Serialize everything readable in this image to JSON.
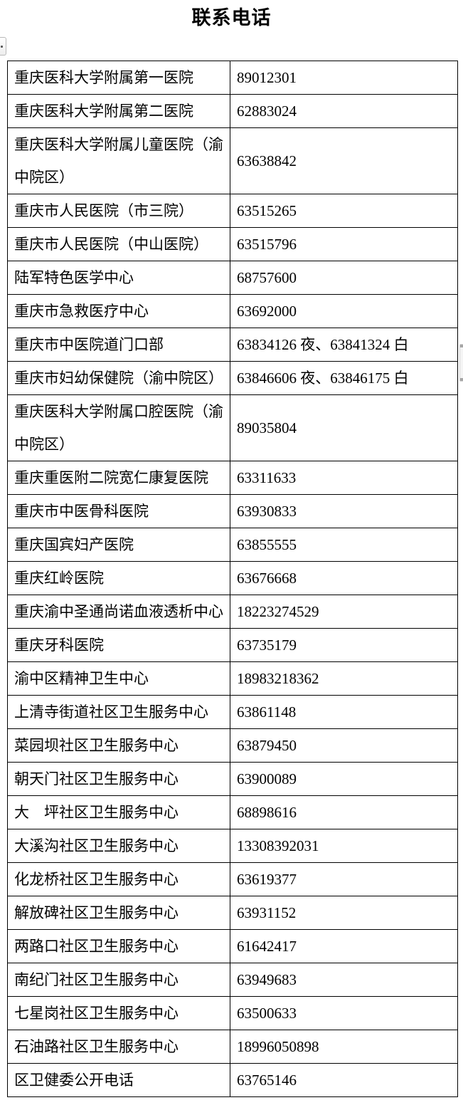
{
  "page": {
    "title": "联系电话"
  },
  "colors": {
    "table_border": "#000000",
    "text": "#000000",
    "scrollbar_thumb": "#f4f4f4",
    "scrollbar_caps": "#a6a6a6"
  },
  "icons": {
    "side_button": "collapsed-panel-button",
    "side_button_glyph": "dot",
    "scrollbar": "scrollbar-thumb"
  },
  "table": {
    "rows": [
      {
        "name": "重庆医科大学附属第一医院",
        "phone": "89012301"
      },
      {
        "name": "重庆医科大学附属第二医院",
        "phone": "62883024"
      },
      {
        "name": "重庆医科大学附属儿童医院（渝中院区）",
        "phone": "63638842"
      },
      {
        "name": "重庆市人民医院（市三院）",
        "phone": "63515265"
      },
      {
        "name": "重庆市人民医院（中山医院）",
        "phone": "63515796"
      },
      {
        "name": "陆军特色医学中心",
        "phone": "68757600"
      },
      {
        "name": "重庆市急救医疗中心",
        "phone": "63692000"
      },
      {
        "name": "重庆市中医院道门口部",
        "phone": "63834126 夜、63841324 白"
      },
      {
        "name": "重庆市妇幼保健院（渝中院区）",
        "phone": "63846606 夜、63846175 白"
      },
      {
        "name": "重庆医科大学附属口腔医院（渝中院区）",
        "phone": "89035804"
      },
      {
        "name": "重庆重医附二院宽仁康复医院",
        "phone": "63311633"
      },
      {
        "name": "重庆市中医骨科医院",
        "phone": "63930833"
      },
      {
        "name": "重庆国宾妇产医院",
        "phone": "63855555"
      },
      {
        "name": "重庆红岭医院",
        "phone": "63676668"
      },
      {
        "name": "重庆渝中圣通尚诺血液透析中心",
        "phone": "18223274529"
      },
      {
        "name": "重庆牙科医院",
        "phone": "63735179"
      },
      {
        "name": "渝中区精神卫生中心",
        "phone": "18983218362"
      },
      {
        "name": "上清寺街道社区卫生服务中心",
        "phone": "63861148"
      },
      {
        "name": "菜园坝社区卫生服务中心",
        "phone": "63879450"
      },
      {
        "name": "朝天门社区卫生服务中心",
        "phone": "63900089"
      },
      {
        "name": "大　坪社区卫生服务中心",
        "phone": "68898616"
      },
      {
        "name": "大溪沟社区卫生服务中心",
        "phone": "13308392031"
      },
      {
        "name": "化龙桥社区卫生服务中心",
        "phone": "63619377"
      },
      {
        "name": "解放碑社区卫生服务中心",
        "phone": "63931152"
      },
      {
        "name": "两路口社区卫生服务中心",
        "phone": "61642417"
      },
      {
        "name": "南纪门社区卫生服务中心",
        "phone": "63949683"
      },
      {
        "name": "七星岗社区卫生服务中心",
        "phone": "63500633"
      },
      {
        "name": "石油路社区卫生服务中心",
        "phone": "18996050898"
      },
      {
        "name": "区卫健委公开电话",
        "phone": "63765146"
      }
    ]
  }
}
